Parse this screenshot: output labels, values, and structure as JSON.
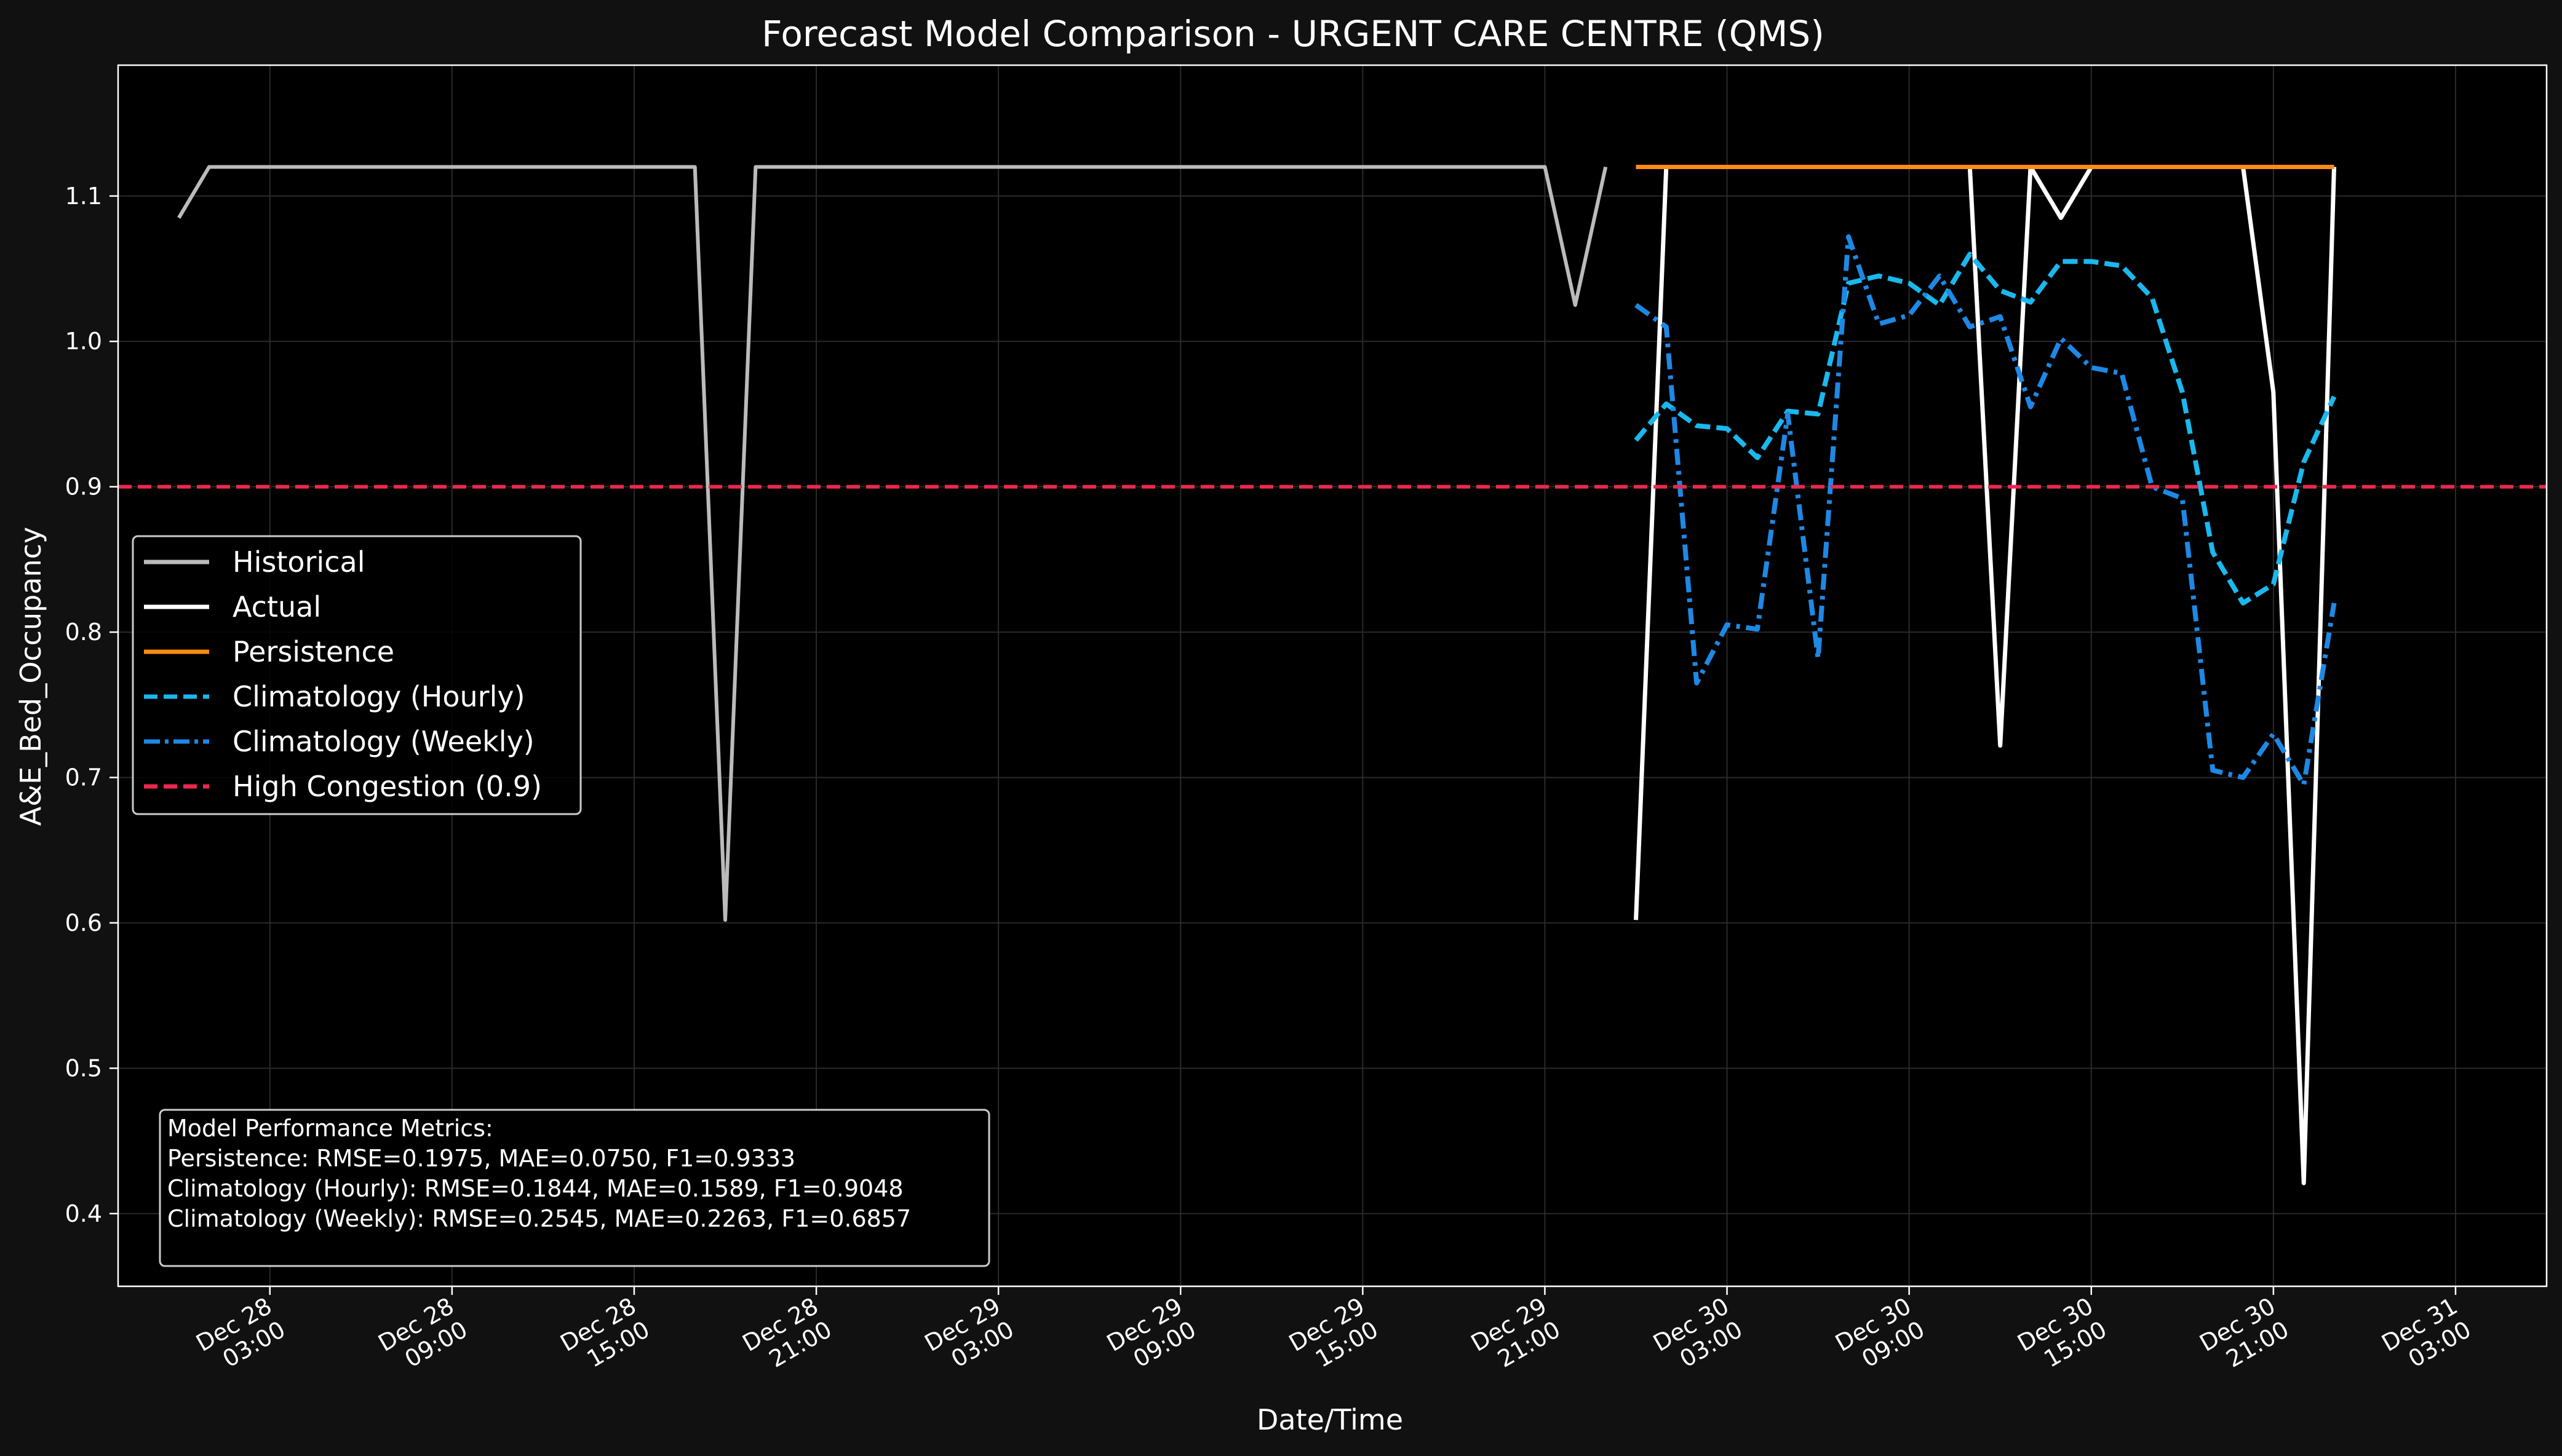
{
  "chart_data": {
    "type": "line",
    "title": "Forecast Model Comparison - URGENT CARE CENTRE (QMS)",
    "xlabel": "Date/Time",
    "ylabel": "A&E_Bed_Occupancy",
    "xlim": [
      "2025-12-27 22:00",
      "2025-12-31 06:00"
    ],
    "ylim": [
      0.35,
      1.19
    ],
    "yticks": [
      0.4,
      0.5,
      0.6,
      0.7,
      0.8,
      0.9,
      1.0,
      1.1
    ],
    "yticks_labels": [
      "0.4",
      "0.5",
      "0.6",
      "0.7",
      "0.8",
      "0.9",
      "1.0",
      "1.1"
    ],
    "xticks": [
      "2025-12-28 03:00",
      "2025-12-28 09:00",
      "2025-12-28 15:00",
      "2025-12-28 21:00",
      "2025-12-29 03:00",
      "2025-12-29 09:00",
      "2025-12-29 15:00",
      "2025-12-29 21:00",
      "2025-12-30 03:00",
      "2025-12-30 09:00",
      "2025-12-30 15:00",
      "2025-12-30 21:00",
      "2025-12-31 03:00"
    ],
    "xticks_labels": [
      [
        "Dec 28",
        "03:00"
      ],
      [
        "Dec 28",
        "09:00"
      ],
      [
        "Dec 28",
        "15:00"
      ],
      [
        "Dec 28",
        "21:00"
      ],
      [
        "Dec 29",
        "03:00"
      ],
      [
        "Dec 29",
        "09:00"
      ],
      [
        "Dec 29",
        "15:00"
      ],
      [
        "Dec 29",
        "21:00"
      ],
      [
        "Dec 30",
        "03:00"
      ],
      [
        "Dec 30",
        "09:00"
      ],
      [
        "Dec 30",
        "15:00"
      ],
      [
        "Dec 30",
        "21:00"
      ],
      [
        "Dec 31",
        "03:00"
      ]
    ],
    "grid": true,
    "legend_position": "center-left",
    "threshold": {
      "name": "High Congestion (0.9)",
      "value": 0.9,
      "color": "#e8294f"
    },
    "series": [
      {
        "name": "Historical",
        "color": "#bbbbbb",
        "style": "solid",
        "x": [
          "2025-12-28 00:00",
          "2025-12-28 01:00",
          "2025-12-28 02:00",
          "2025-12-28 03:00",
          "2025-12-28 04:00",
          "2025-12-28 05:00",
          "2025-12-28 06:00",
          "2025-12-28 07:00",
          "2025-12-28 08:00",
          "2025-12-28 09:00",
          "2025-12-28 10:00",
          "2025-12-28 11:00",
          "2025-12-28 12:00",
          "2025-12-28 13:00",
          "2025-12-28 14:00",
          "2025-12-28 15:00",
          "2025-12-28 16:00",
          "2025-12-28 17:00",
          "2025-12-28 18:00",
          "2025-12-28 19:00",
          "2025-12-28 20:00",
          "2025-12-28 21:00",
          "2025-12-28 22:00",
          "2025-12-28 23:00",
          "2025-12-29 00:00",
          "2025-12-29 01:00",
          "2025-12-29 02:00",
          "2025-12-29 03:00",
          "2025-12-29 04:00",
          "2025-12-29 05:00",
          "2025-12-29 06:00",
          "2025-12-29 07:00",
          "2025-12-29 08:00",
          "2025-12-29 09:00",
          "2025-12-29 10:00",
          "2025-12-29 11:00",
          "2025-12-29 12:00",
          "2025-12-29 13:00",
          "2025-12-29 14:00",
          "2025-12-29 15:00",
          "2025-12-29 16:00",
          "2025-12-29 17:00",
          "2025-12-29 18:00",
          "2025-12-29 19:00",
          "2025-12-29 20:00",
          "2025-12-29 21:00",
          "2025-12-29 22:00",
          "2025-12-29 23:00"
        ],
        "values": [
          1.085,
          1.12,
          1.12,
          1.12,
          1.12,
          1.12,
          1.12,
          1.12,
          1.12,
          1.12,
          1.12,
          1.12,
          1.12,
          1.12,
          1.12,
          1.12,
          1.12,
          1.12,
          0.602,
          1.12,
          1.12,
          1.12,
          1.12,
          1.12,
          1.12,
          1.12,
          1.12,
          1.12,
          1.12,
          1.12,
          1.12,
          1.12,
          1.12,
          1.12,
          1.12,
          1.12,
          1.12,
          1.12,
          1.12,
          1.12,
          1.12,
          1.12,
          1.12,
          1.12,
          1.12,
          1.12,
          1.025,
          1.12
        ]
      },
      {
        "name": "Actual",
        "color": "#ffffff",
        "style": "solid",
        "x": [
          "2025-12-30 00:00",
          "2025-12-30 01:00",
          "2025-12-30 02:00",
          "2025-12-30 03:00",
          "2025-12-30 04:00",
          "2025-12-30 05:00",
          "2025-12-30 06:00",
          "2025-12-30 07:00",
          "2025-12-30 08:00",
          "2025-12-30 09:00",
          "2025-12-30 10:00",
          "2025-12-30 11:00",
          "2025-12-30 12:00",
          "2025-12-30 13:00",
          "2025-12-30 14:00",
          "2025-12-30 15:00",
          "2025-12-30 16:00",
          "2025-12-30 17:00",
          "2025-12-30 18:00",
          "2025-12-30 19:00",
          "2025-12-30 20:00",
          "2025-12-30 21:00",
          "2025-12-30 22:00",
          "2025-12-30 23:00"
        ],
        "values": [
          0.602,
          1.12,
          1.12,
          1.12,
          1.12,
          1.12,
          1.12,
          1.12,
          1.12,
          1.12,
          1.12,
          1.12,
          0.722,
          1.12,
          1.085,
          1.12,
          1.12,
          1.12,
          1.12,
          1.12,
          1.12,
          0.965,
          0.421,
          1.12
        ]
      },
      {
        "name": "Persistence",
        "color": "#ff8c12",
        "style": "solid",
        "x": [
          "2025-12-30 00:00",
          "2025-12-30 23:00"
        ],
        "values": [
          1.12,
          1.12
        ]
      },
      {
        "name": "Climatology (Hourly)",
        "color": "#1ab8ee",
        "style": "dashed",
        "x": [
          "2025-12-30 00:00",
          "2025-12-30 01:00",
          "2025-12-30 02:00",
          "2025-12-30 03:00",
          "2025-12-30 04:00",
          "2025-12-30 05:00",
          "2025-12-30 06:00",
          "2025-12-30 07:00",
          "2025-12-30 08:00",
          "2025-12-30 09:00",
          "2025-12-30 10:00",
          "2025-12-30 11:00",
          "2025-12-30 12:00",
          "2025-12-30 13:00",
          "2025-12-30 14:00",
          "2025-12-30 15:00",
          "2025-12-30 16:00",
          "2025-12-30 17:00",
          "2025-12-30 18:00",
          "2025-12-30 19:00",
          "2025-12-30 20:00",
          "2025-12-30 21:00",
          "2025-12-30 22:00",
          "2025-12-30 23:00"
        ],
        "values": [
          0.932,
          0.957,
          0.942,
          0.94,
          0.92,
          0.952,
          0.95,
          1.04,
          1.045,
          1.04,
          1.025,
          1.06,
          1.035,
          1.027,
          1.055,
          1.055,
          1.052,
          1.03,
          0.965,
          0.855,
          0.82,
          0.833,
          0.917,
          0.962
        ]
      },
      {
        "name": "Climatology (Weekly)",
        "color": "#1e88e5",
        "style": "dashdot",
        "x": [
          "2025-12-30 00:00",
          "2025-12-30 01:00",
          "2025-12-30 02:00",
          "2025-12-30 03:00",
          "2025-12-30 04:00",
          "2025-12-30 05:00",
          "2025-12-30 06:00",
          "2025-12-30 07:00",
          "2025-12-30 08:00",
          "2025-12-30 09:00",
          "2025-12-30 10:00",
          "2025-12-30 11:00",
          "2025-12-30 12:00",
          "2025-12-30 13:00",
          "2025-12-30 14:00",
          "2025-12-30 15:00",
          "2025-12-30 16:00",
          "2025-12-30 17:00",
          "2025-12-30 18:00",
          "2025-12-30 19:00",
          "2025-12-30 20:00",
          "2025-12-30 21:00",
          "2025-12-30 22:00",
          "2025-12-30 23:00"
        ],
        "values": [
          1.025,
          1.01,
          0.765,
          0.805,
          0.802,
          0.95,
          0.782,
          1.072,
          1.012,
          1.018,
          1.045,
          1.01,
          1.017,
          0.955,
          1.002,
          0.982,
          0.978,
          0.9,
          0.892,
          0.705,
          0.7,
          0.73,
          0.695,
          0.82
        ]
      }
    ],
    "annotation": {
      "lines": [
        "Model Performance Metrics:",
        "Persistence: RMSE=0.1975, MAE=0.0750, F1=0.9333",
        "Climatology (Hourly): RMSE=0.1844, MAE=0.1589, F1=0.9048",
        "Climatology (Weekly): RMSE=0.2545, MAE=0.2263, F1=0.6857"
      ]
    }
  }
}
